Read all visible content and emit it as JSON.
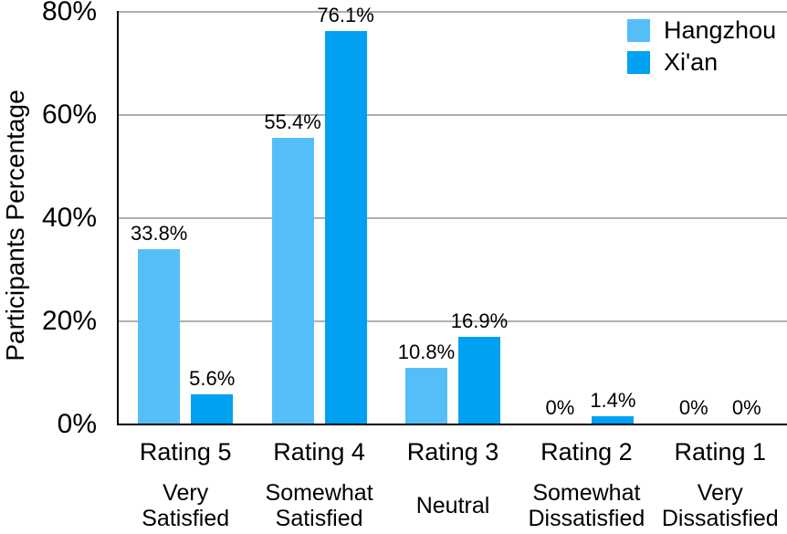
{
  "chart_data": {
    "type": "bar",
    "title": "",
    "xlabel": "",
    "ylabel": "Participants Percentage",
    "ylim": [
      0,
      80
    ],
    "yticks": [
      0,
      20,
      40,
      60,
      80
    ],
    "ytick_labels": [
      "0%",
      "20%",
      "40%",
      "60%",
      "80%"
    ],
    "grid": true,
    "legend_position": "top-right",
    "categories": [
      "Rating 5",
      "Rating 4",
      "Rating 3",
      "Rating 2",
      "Rating 1"
    ],
    "category_sublabels": [
      [
        "Very",
        "Satisfied"
      ],
      [
        "Somewhat",
        "Satisfied"
      ],
      [
        "Neutral"
      ],
      [
        "Somewhat",
        "Dissatisfied"
      ],
      [
        "Very",
        "Dissatisfied"
      ]
    ],
    "series": [
      {
        "name": "Hangzhou",
        "color": "#55BEF8",
        "values": [
          33.8,
          55.4,
          10.8,
          0,
          0
        ],
        "labels": [
          "33.8%",
          "55.4%",
          "10.8%",
          "0%",
          "0%"
        ]
      },
      {
        "name": "Xi'an",
        "color": "#00A1F1",
        "values": [
          5.6,
          76.1,
          16.9,
          1.4,
          0
        ],
        "labels": [
          "5.6%",
          "76.1%",
          "16.9%",
          "1.4%",
          "0%"
        ]
      }
    ],
    "colors": {
      "grid": "#AFAFAF",
      "axis": "#000000",
      "text": "#000000"
    }
  }
}
